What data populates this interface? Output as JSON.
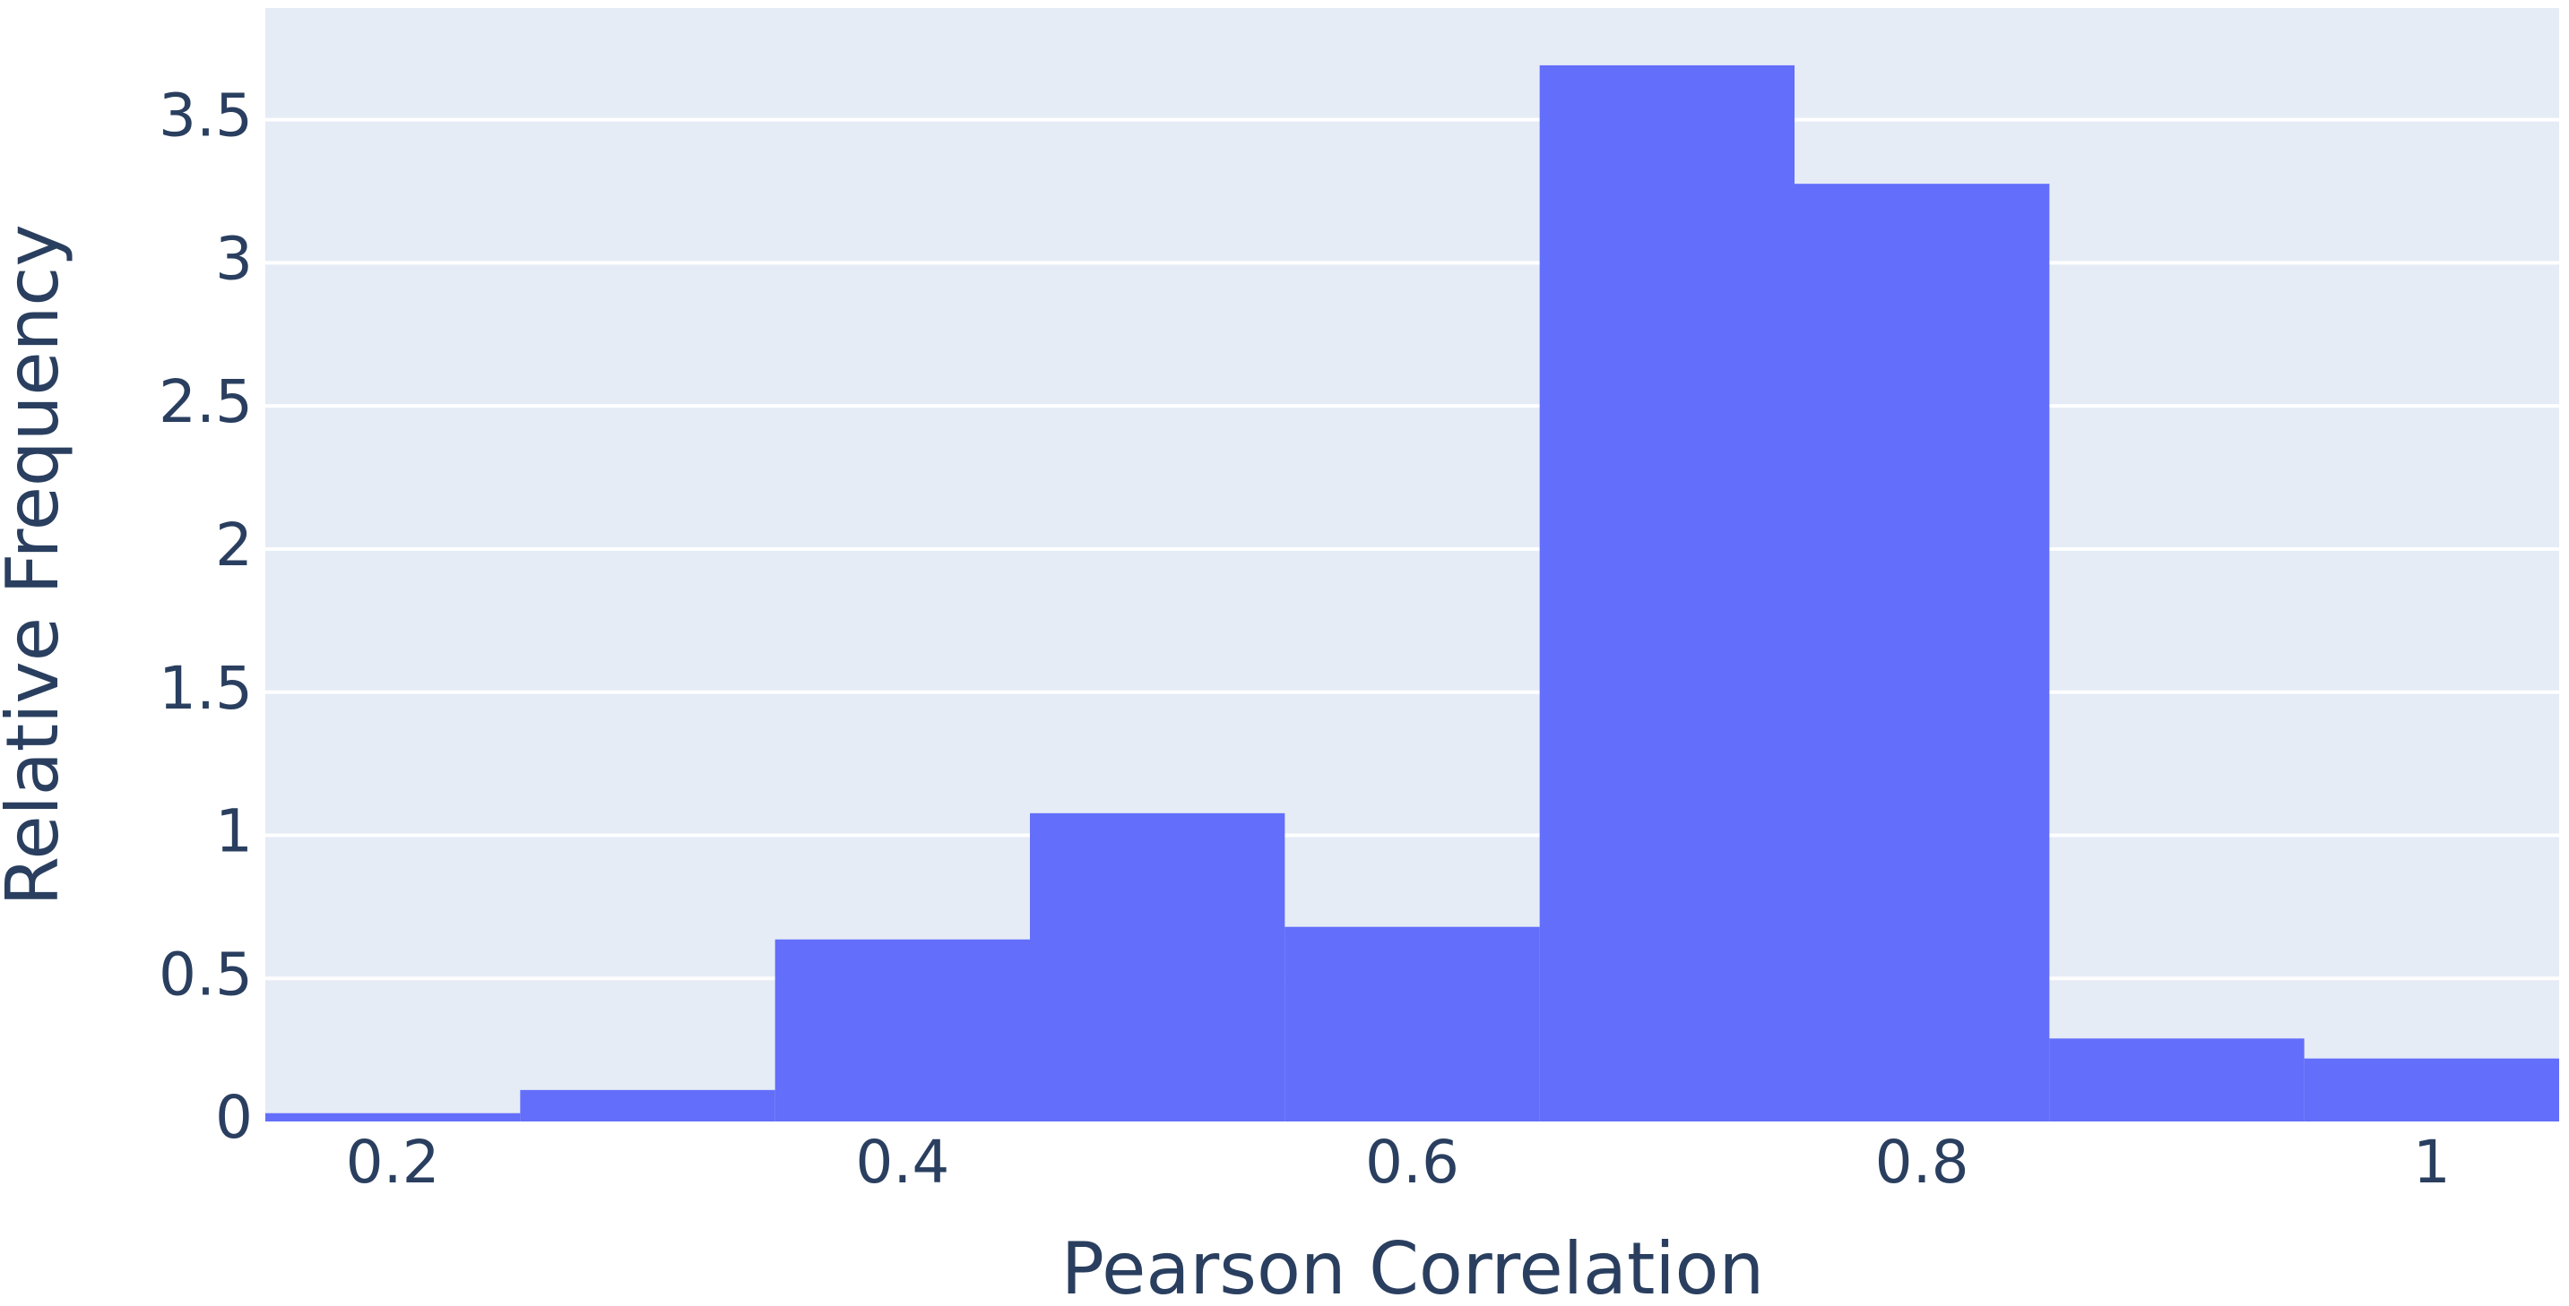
{
  "chart_data": {
    "type": "histogram",
    "x_label": "Pearson Correlation",
    "y_label": "Relative Frequency",
    "bins": [
      0.15,
      0.25,
      0.35,
      0.45,
      0.55,
      0.65,
      0.75,
      0.85,
      0.95,
      1.05
    ],
    "values": [
      0.029,
      0.11,
      0.636,
      1.077,
      0.68,
      3.69,
      3.276,
      0.29,
      0.22
    ],
    "color": "#636efa",
    "xlim": [
      0.15,
      1.05
    ],
    "xticks": [
      0.2,
      0.4,
      0.6,
      0.8,
      1
    ],
    "ylim": [
      0,
      3.89
    ],
    "yticks": [
      0,
      0.5,
      1,
      1.5,
      2,
      2.5,
      3,
      3.5
    ],
    "grid": true
  }
}
